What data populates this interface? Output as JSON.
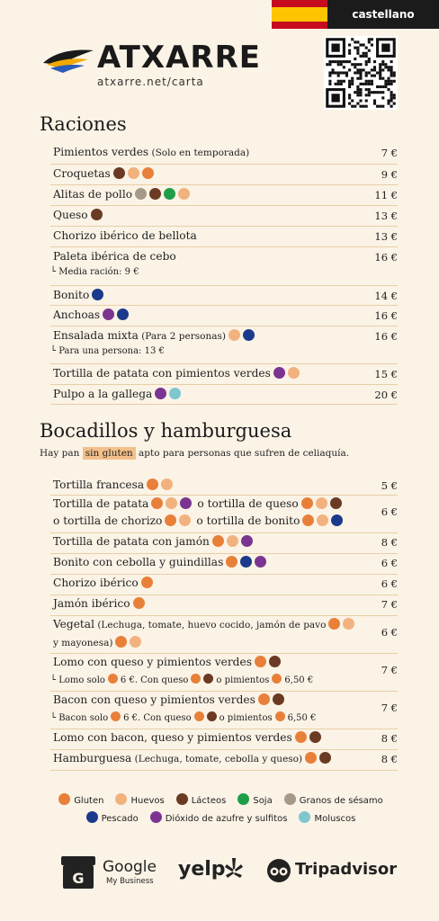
{
  "colors": {
    "gluten": "#e8803a",
    "huevos": "#f2b27e",
    "lacteos": "#6b3a22",
    "soja": "#1f9e48",
    "sesamo": "#a59a87",
    "pescado": "#1c3a8c",
    "sulfitos": "#7b3591",
    "moluscos": "#7ec7cf"
  },
  "lang_label": "castellano",
  "brand": {
    "name": "ATXARRE",
    "site": "atxarre.net/carta"
  },
  "raciones": {
    "title": "Raciones",
    "items": [
      {
        "name": "Pimientos verdes",
        "note": " (Solo en temporada)",
        "price": "7 €",
        "dots": []
      },
      {
        "name": "Croquetas",
        "price": "9 €",
        "dots": [
          "lacteos",
          "huevos",
          "gluten"
        ]
      },
      {
        "name": "Alitas de pollo",
        "price": "11 €",
        "dots": [
          "sesamo",
          "lacteos",
          "soja",
          "huevos"
        ]
      },
      {
        "name": "Queso",
        "price": "13 €",
        "dots": [
          "lacteos"
        ]
      },
      {
        "name": "Chorizo ibérico de bellota",
        "price": "13 €",
        "dots": []
      },
      {
        "name": "Paleta ibérica de cebo",
        "price": "16 €",
        "dots": [],
        "sub": "└ Media ración: 9 €"
      },
      {
        "name": "Bonito",
        "price": "14 €",
        "dots": [
          "pescado"
        ]
      },
      {
        "name": "Anchoas",
        "price": "16 €",
        "dots": [
          "sulfitos",
          "pescado"
        ]
      },
      {
        "name": "Ensalada mixta",
        "note": " (Para 2 personas)",
        "price": "16 €",
        "dots": [
          "huevos",
          "pescado"
        ],
        "sub": "└ Para una persona: 13 €"
      },
      {
        "name": "Tortilla de patata con pimientos verdes",
        "price": "15 €",
        "dots": [
          "sulfitos",
          "huevos"
        ]
      },
      {
        "name": "Pulpo a la gallega",
        "price": "20 €",
        "dots": [
          "sulfitos",
          "moluscos"
        ]
      }
    ]
  },
  "bocadillos": {
    "title": "Bocadillos y hamburguesa",
    "note_pre": "Hay pan",
    "note_hl": "sin gluten",
    "note_post": "apto para personas que sufren de celiaquía.",
    "items": [
      {
        "name": "Tortilla francesa",
        "price": "5 €",
        "dots": [
          "gluten",
          "huevos"
        ]
      },
      {
        "name": "Tortilla de patata",
        "price": "6 €",
        "dots": [
          "gluten",
          "huevos",
          "sulfitos"
        ],
        "name2": "o tortilla de queso",
        "dots2": [
          "gluten",
          "huevos",
          "lacteos"
        ],
        "name3": "o tortilla de chorizo",
        "dots3": [
          "gluten",
          "huevos"
        ],
        "name4": "o tortilla de bonito",
        "dots4": [
          "gluten",
          "huevos",
          "pescado"
        ]
      },
      {
        "name": "Tortilla de patata con jamón",
        "price": "8 €",
        "dots": [
          "gluten",
          "huevos",
          "sulfitos"
        ]
      },
      {
        "name": "Bonito con cebolla y guindillas",
        "price": "6 €",
        "dots": [
          "gluten",
          "pescado",
          "sulfitos"
        ]
      },
      {
        "name": "Chorizo ibérico",
        "price": "6 €",
        "dots": [
          "gluten"
        ]
      },
      {
        "name": "Jamón ibérico",
        "price": "7 €",
        "dots": [
          "gluten"
        ]
      },
      {
        "name": "Vegetal",
        "note": " (Lechuga, tomate, huevo cocido, jamón de pavo",
        "line2": "y mayonesa)",
        "price": "6 €",
        "dots": [
          "gluten",
          "huevos"
        ]
      },
      {
        "name": "Lomo con queso y pimientos verdes",
        "price": "7 €",
        "dots": [
          "gluten",
          "lacteos"
        ],
        "sub_a": "└ Lomo solo",
        "sub_b": "6 €. Con queso",
        "sub_c": "o pimientos",
        "sub_d": "6,50 €"
      },
      {
        "name": "Bacon con queso y pimientos verdes",
        "price": "7 €",
        "dots": [
          "gluten",
          "lacteos"
        ],
        "sub_a": "└ Bacon solo",
        "sub_b": "6 €. Con queso",
        "sub_c": "o pimientos",
        "sub_d": "6,50 €"
      },
      {
        "name": "Lomo con bacon, queso y pimientos verdes",
        "price": "8 €",
        "dots": [
          "gluten",
          "lacteos"
        ]
      },
      {
        "name": "Hamburguesa",
        "note": " (Lechuga, tomate, cebolla y queso)",
        "price": "8 €",
        "dots": [
          "gluten",
          "lacteos"
        ]
      }
    ]
  },
  "legend": {
    "row1": [
      {
        "key": "gluten",
        "label": "Gluten"
      },
      {
        "key": "huevos",
        "label": "Huevos"
      },
      {
        "key": "lacteos",
        "label": "Lácteos"
      },
      {
        "key": "soja",
        "label": "Soja"
      },
      {
        "key": "sesamo",
        "label": "Granos de sésamo"
      }
    ],
    "row2": [
      {
        "key": "pescado",
        "label": "Pescado"
      },
      {
        "key": "sulfitos",
        "label": "Dióxido de azufre y sulfitos"
      },
      {
        "key": "moluscos",
        "label": "Moluscos"
      }
    ]
  },
  "footer": {
    "google": "Google",
    "google_sub": "My Business",
    "yelp": "yelp",
    "tripadvisor": "Tripadvisor"
  }
}
